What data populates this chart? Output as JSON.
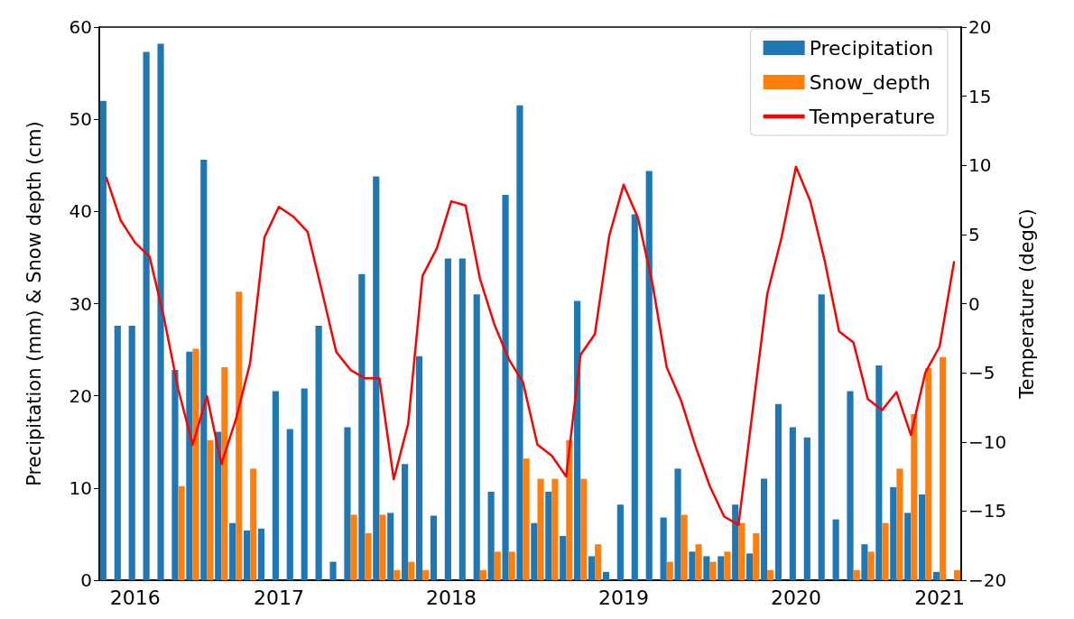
{
  "chart_data": {
    "type": "bar",
    "xlabel": null,
    "ylabel": "Precipitation (mm) & Snow depth (cm)",
    "y2label": "Temperature (degC)",
    "categories": [
      null,
      null,
      "2016",
      null,
      null,
      null,
      null,
      null,
      null,
      null,
      null,
      null,
      "2017",
      null,
      null,
      null,
      null,
      null,
      null,
      null,
      null,
      null,
      null,
      null,
      "2018",
      null,
      null,
      null,
      null,
      null,
      null,
      null,
      null,
      null,
      null,
      null,
      "2019",
      null,
      null,
      null,
      null,
      null,
      null,
      null,
      null,
      null,
      null,
      null,
      "2020",
      null,
      null,
      null,
      null,
      null,
      null,
      null,
      null,
      null,
      "2021",
      null
    ],
    "series": [
      {
        "name": "Precipitation",
        "color": "#1f77b4",
        "values": [
          52.0,
          27.6,
          27.6,
          57.3,
          58.2,
          22.8,
          24.8,
          45.6,
          16.1,
          6.2,
          5.4,
          5.6,
          20.5,
          16.4,
          20.8,
          27.6,
          2.0,
          16.6,
          33.2,
          43.8,
          7.3,
          12.6,
          24.3,
          7.0,
          34.9,
          34.9,
          31.0,
          9.6,
          41.8,
          51.5,
          6.2,
          9.6,
          4.8,
          30.3,
          2.6,
          0.9,
          8.2,
          39.7,
          44.4,
          6.8,
          12.1,
          3.1,
          2.6,
          2.6,
          8.2,
          2.9,
          11.0,
          19.1,
          16.6,
          15.5,
          31.0,
          6.6,
          20.5,
          3.9,
          23.3,
          10.1,
          7.3,
          9.3,
          0.9,
          null
        ]
      },
      {
        "name": "Snow_depth",
        "color": "#ff7f0e",
        "values": [
          null,
          null,
          null,
          null,
          null,
          10.2,
          25.1,
          15.2,
          23.1,
          31.3,
          12.1,
          null,
          null,
          null,
          null,
          null,
          null,
          7.1,
          5.1,
          7.1,
          1.1,
          2.0,
          1.1,
          null,
          null,
          null,
          1.1,
          3.1,
          3.1,
          13.2,
          11.0,
          11.0,
          15.2,
          11.0,
          3.9,
          null,
          null,
          null,
          null,
          2.0,
          7.1,
          3.9,
          2.0,
          3.1,
          6.2,
          5.1,
          1.1,
          null,
          null,
          null,
          null,
          null,
          1.1,
          3.1,
          6.2,
          12.1,
          18.0,
          23.0,
          24.2,
          1.1
        ]
      },
      {
        "name": "Temperature",
        "type": "line",
        "axis": "y2",
        "color": "#ff0000",
        "values": [
          9.1,
          6.0,
          4.4,
          3.4,
          -1.0,
          -6.2,
          -10.2,
          -6.7,
          -11.6,
          -8.4,
          -4.3,
          4.8,
          7.0,
          6.3,
          5.2,
          0.9,
          -3.5,
          -4.8,
          -5.4,
          -5.4,
          -12.7,
          -8.7,
          2.0,
          4.0,
          7.4,
          7.1,
          1.8,
          -1.5,
          -4.0,
          -5.7,
          -10.2,
          -11.0,
          -12.5,
          -3.7,
          -2.2,
          4.9,
          8.6,
          6.2,
          1.5,
          -4.6,
          -7.0,
          -10.3,
          -13.2,
          -15.4,
          -16.0,
          -7.6,
          0.7,
          4.8,
          9.9,
          7.4,
          3.1,
          -2.0,
          -2.8,
          -6.9,
          -7.7,
          -6.4,
          -9.5,
          -5.0,
          -3.1,
          3.0
        ]
      }
    ],
    "ylim": [
      0,
      60
    ],
    "yticks": [
      0,
      10,
      20,
      30,
      40,
      50,
      60
    ],
    "y2lim": [
      -20,
      20
    ],
    "y2ticks": [
      -20,
      -15,
      -10,
      -5,
      0,
      5,
      10,
      15,
      20
    ],
    "grid": false,
    "legend": "top right",
    "marker": "none",
    "line_style": "solid"
  }
}
